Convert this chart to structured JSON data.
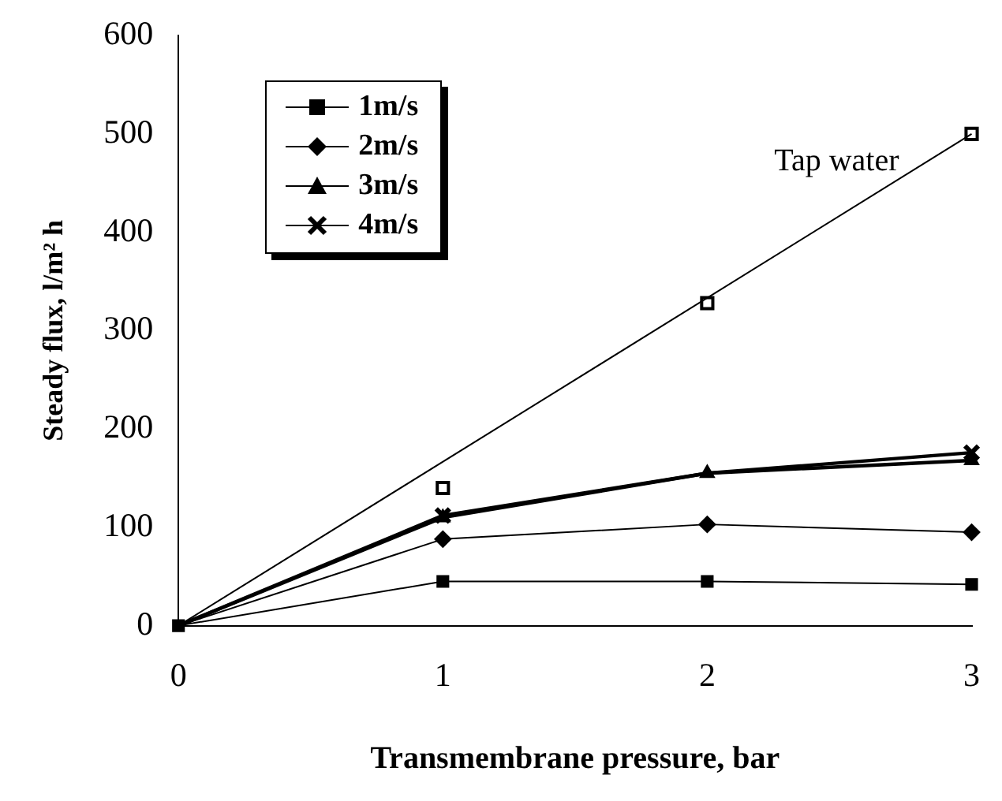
{
  "chart_data": {
    "type": "line",
    "xlabel": "Transmembrane pressure, bar",
    "ylabel": "Steady flux, l/m² h",
    "x": [
      0,
      1,
      2,
      3
    ],
    "xlim": [
      0,
      3
    ],
    "xticks": [
      0,
      1,
      2,
      3
    ],
    "ylim": [
      0,
      600
    ],
    "yticks": [
      0,
      100,
      200,
      300,
      400,
      500,
      600
    ],
    "grid": false,
    "legend": "top left",
    "line_style": "solid",
    "series": [
      {
        "name": "1m/s",
        "color": "#000000",
        "marker": "square",
        "values": [
          0,
          45,
          45,
          42
        ]
      },
      {
        "name": "2m/s",
        "color": "#000000",
        "marker": "diamond",
        "values": [
          0,
          88,
          103,
          95
        ]
      },
      {
        "name": "3m/s",
        "color": "#000000",
        "marker": "triangle",
        "values": [
          0,
          110,
          155,
          168
        ]
      },
      {
        "name": "4m/s",
        "color": "#000000",
        "marker": "cross",
        "values": [
          0,
          112,
          155,
          176
        ]
      },
      {
        "type": "scatter",
        "name": "Tap water",
        "color": "#000000",
        "marker": "square",
        "x": [
          1,
          2,
          3
        ],
        "values": [
          140,
          328,
          500
        ]
      },
      {
        "type": "line",
        "color": "#000000",
        "marker": "none",
        "x": [
          0,
          3
        ],
        "values": [
          0,
          500
        ]
      }
    ]
  }
}
